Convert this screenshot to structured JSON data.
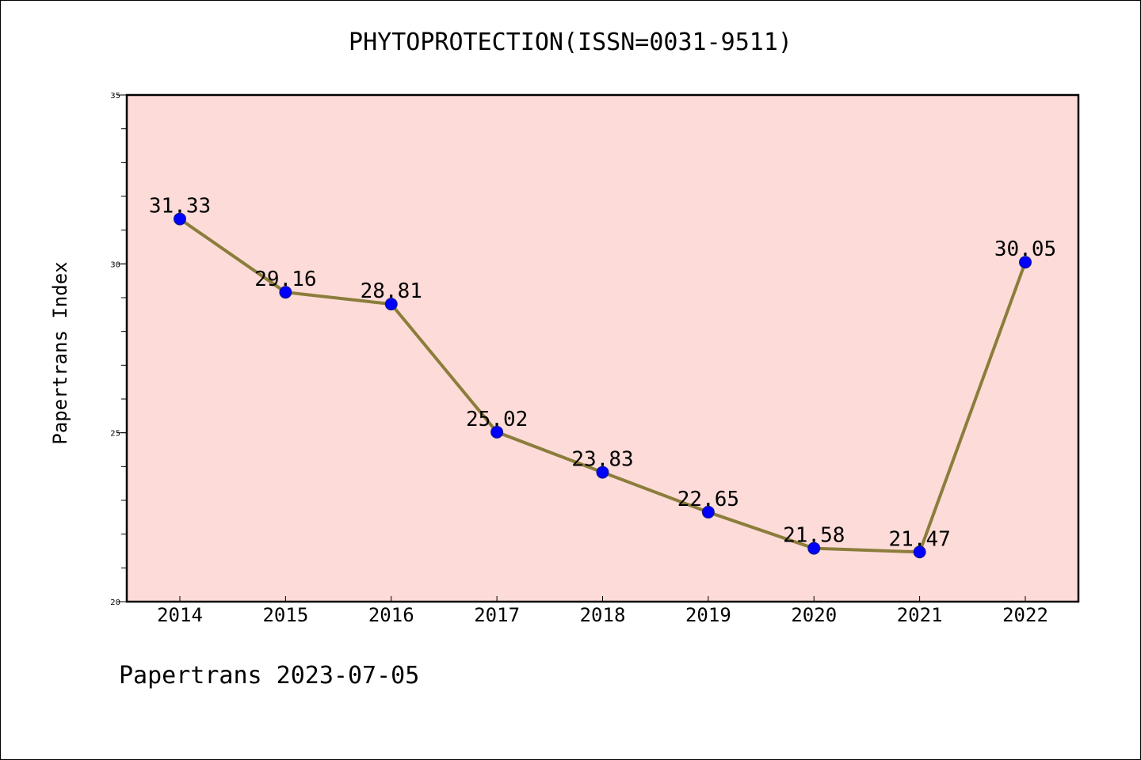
{
  "chart_data": {
    "type": "line",
    "title": "PHYTOPROTECTION(ISSN=0031-9511)",
    "xlabel": "",
    "ylabel": "Papertrans Index",
    "categories": [
      "2014",
      "2015",
      "2016",
      "2017",
      "2018",
      "2019",
      "2020",
      "2021",
      "2022"
    ],
    "series": [
      {
        "values": [
          31.33,
          29.16,
          28.81,
          25.02,
          23.83,
          22.65,
          21.58,
          21.47,
          30.05
        ],
        "data_labels": [
          "31.33",
          "29.16",
          "28.81",
          "25.02",
          "23.83",
          "22.65",
          "21.58",
          "21.47",
          "30.05"
        ]
      }
    ],
    "ylim": [
      20,
      35
    ],
    "yticks": [
      20,
      25,
      30,
      35
    ],
    "ytick_labels": [
      "20",
      "25",
      "30",
      "35"
    ],
    "grid": false,
    "legend": "none",
    "colors": {
      "plot_background": "#fddbd8",
      "line": "#8b7d3b",
      "marker": "#0000ff"
    }
  },
  "footer": "Papertrans 2023-07-05"
}
